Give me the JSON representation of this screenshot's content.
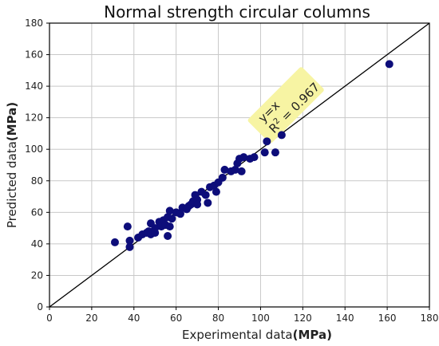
{
  "chart_data": {
    "type": "scatter",
    "title": "Normal strength circular columns",
    "xlabel": "Experimental data",
    "xlabel_unit": "(MPa)",
    "ylabel": "Predicted data",
    "ylabel_unit": "(MPa)",
    "xlim": [
      0,
      180
    ],
    "ylim": [
      0,
      180
    ],
    "xticks": [
      "0",
      "20",
      "40",
      "60",
      "80",
      "100",
      "120",
      "140",
      "160",
      "180"
    ],
    "yticks": [
      "0",
      "20",
      "40",
      "60",
      "80",
      "100",
      "120",
      "140",
      "160",
      "180"
    ],
    "grid": true,
    "marker_color": "#0d0d7a",
    "reference_line": {
      "label": "y=x",
      "from": [
        0,
        0
      ],
      "to": [
        180,
        180
      ],
      "color": "#000000"
    },
    "annotation": {
      "line1": "y=x",
      "r2_prefix": "R",
      "r2_sup": "2",
      "r2_value": " = 0.967",
      "box_color": "#f7f4a3"
    },
    "points": [
      {
        "x": 31,
        "y": 41
      },
      {
        "x": 37,
        "y": 51
      },
      {
        "x": 38,
        "y": 42
      },
      {
        "x": 38,
        "y": 38
      },
      {
        "x": 42,
        "y": 44
      },
      {
        "x": 44,
        "y": 46
      },
      {
        "x": 46,
        "y": 47
      },
      {
        "x": 47,
        "y": 48
      },
      {
        "x": 48,
        "y": 46
      },
      {
        "x": 48,
        "y": 53
      },
      {
        "x": 50,
        "y": 47
      },
      {
        "x": 50,
        "y": 50
      },
      {
        "x": 52,
        "y": 54
      },
      {
        "x": 53,
        "y": 51
      },
      {
        "x": 54,
        "y": 55
      },
      {
        "x": 55,
        "y": 52
      },
      {
        "x": 56,
        "y": 45
      },
      {
        "x": 56,
        "y": 57
      },
      {
        "x": 57,
        "y": 61
      },
      {
        "x": 57,
        "y": 51
      },
      {
        "x": 58,
        "y": 56
      },
      {
        "x": 60,
        "y": 60
      },
      {
        "x": 62,
        "y": 59
      },
      {
        "x": 63,
        "y": 63
      },
      {
        "x": 65,
        "y": 62
      },
      {
        "x": 66,
        "y": 64
      },
      {
        "x": 67,
        "y": 65
      },
      {
        "x": 68,
        "y": 67
      },
      {
        "x": 69,
        "y": 71
      },
      {
        "x": 70,
        "y": 68
      },
      {
        "x": 70,
        "y": 65
      },
      {
        "x": 72,
        "y": 73
      },
      {
        "x": 74,
        "y": 71
      },
      {
        "x": 75,
        "y": 66
      },
      {
        "x": 76,
        "y": 76
      },
      {
        "x": 78,
        "y": 77
      },
      {
        "x": 79,
        "y": 73
      },
      {
        "x": 80,
        "y": 79
      },
      {
        "x": 82,
        "y": 82
      },
      {
        "x": 83,
        "y": 87
      },
      {
        "x": 86,
        "y": 86
      },
      {
        "x": 88,
        "y": 87
      },
      {
        "x": 89,
        "y": 91
      },
      {
        "x": 90,
        "y": 94
      },
      {
        "x": 91,
        "y": 86
      },
      {
        "x": 92,
        "y": 95
      },
      {
        "x": 95,
        "y": 94
      },
      {
        "x": 97,
        "y": 95
      },
      {
        "x": 102,
        "y": 98
      },
      {
        "x": 103,
        "y": 105
      },
      {
        "x": 107,
        "y": 98
      },
      {
        "x": 110,
        "y": 109
      },
      {
        "x": 161,
        "y": 154
      }
    ]
  }
}
